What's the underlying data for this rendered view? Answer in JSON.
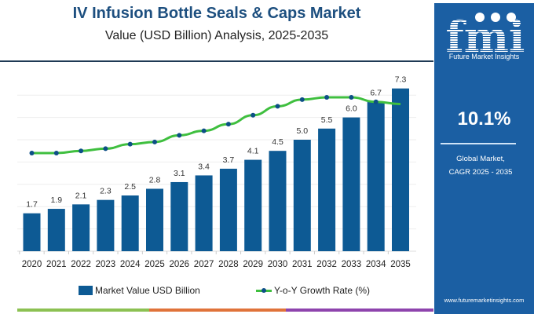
{
  "header": {
    "title": "IV Infusion Bottle Seals & Caps Market",
    "subtitle": "Value (USD Billion) Analysis, 2025-2035"
  },
  "side_panel": {
    "logo_text": "fmi",
    "logo_caption": "Future Market Insights",
    "cagr_value": "10.1%",
    "cagr_label_line1": "Global Market,",
    "cagr_label_line2": "CAGR 2025 - 2035",
    "website": "www.futuremarketinsights.com",
    "background_color": "#1b5fa3"
  },
  "legend": {
    "bar_label": "Market Value USD Billion",
    "line_label": "Y-o-Y Growth Rate (%)"
  },
  "colors": {
    "bar": "#0d5a94",
    "line": "#3fbf3f",
    "marker": "#0d4f86",
    "strip": [
      "#8cc152",
      "#e0733a",
      "#8e44ad"
    ]
  },
  "chart_data": {
    "type": "bar",
    "categories": [
      "2020",
      "2021",
      "2022",
      "2023",
      "2024",
      "2025",
      "2026",
      "2027",
      "2028",
      "2029",
      "2030",
      "2031",
      "2032",
      "2033",
      "2034",
      "2035"
    ],
    "series": [
      {
        "name": "Market Value USD Billion",
        "type": "bar",
        "values": [
          1.7,
          1.9,
          2.1,
          2.3,
          2.5,
          2.8,
          3.1,
          3.4,
          3.7,
          4.1,
          4.5,
          5.0,
          5.5,
          6.0,
          6.7,
          7.3
        ],
        "labels": [
          "1.7",
          "1.9",
          "2.1",
          "2.3",
          "2.5",
          "2.8",
          "3.1",
          "3.4",
          "3.7",
          "4.1",
          "4.5",
          "5.0",
          "5.5",
          "6.0",
          "6.7",
          "7.3"
        ]
      },
      {
        "name": "Y-o-Y Growth Rate (%)",
        "type": "line",
        "values": [
          4.4,
          4.4,
          4.5,
          4.6,
          4.8,
          4.9,
          5.2,
          5.4,
          5.7,
          6.1,
          6.5,
          6.8,
          6.9,
          6.9,
          6.7,
          6.6
        ]
      }
    ],
    "ylim": [
      0,
      7.3
    ],
    "grid": true,
    "legend_position": "bottom"
  }
}
